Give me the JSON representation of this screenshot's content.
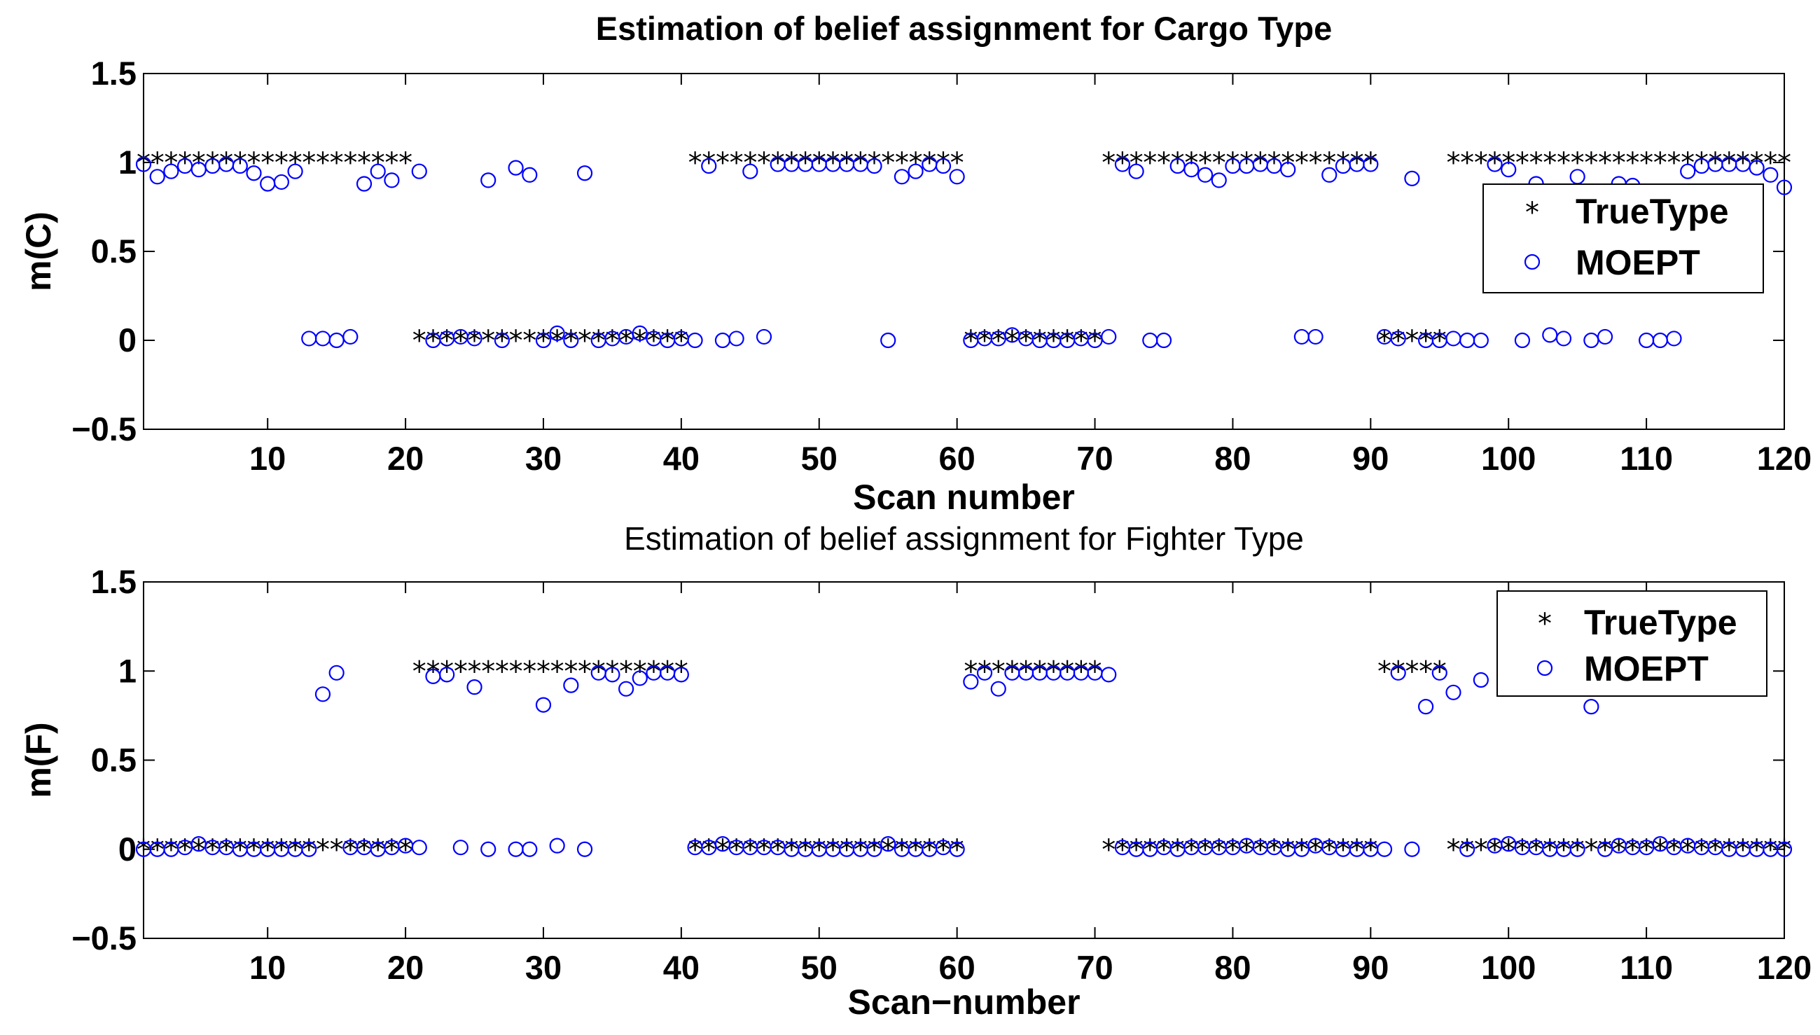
{
  "chart_data": [
    {
      "type": "scatter",
      "title": "Estimation of belief assignment for Cargo Type",
      "xlabel": "Scan number",
      "ylabel": "m(C)",
      "xlim": [
        1,
        120
      ],
      "ylim": [
        -0.5,
        1.5
      ],
      "xticks": [
        "10",
        "20",
        "30",
        "40",
        "50",
        "60",
        "70",
        "80",
        "90",
        "100",
        "110",
        "120"
      ],
      "yticks": [
        "1.5",
        "1",
        "0.5",
        "0",
        "−0.5"
      ],
      "legend_position": "right",
      "series": [
        {
          "name": "TrueType",
          "marker": "asterisk",
          "color": "#000000",
          "x": [
            1,
            2,
            3,
            4,
            5,
            6,
            7,
            8,
            9,
            10,
            11,
            12,
            13,
            14,
            15,
            16,
            17,
            18,
            19,
            20,
            21,
            22,
            23,
            24,
            25,
            26,
            27,
            28,
            29,
            30,
            31,
            32,
            33,
            34,
            35,
            36,
            37,
            38,
            39,
            40,
            41,
            42,
            43,
            44,
            45,
            46,
            47,
            48,
            49,
            50,
            51,
            52,
            53,
            54,
            55,
            56,
            57,
            58,
            59,
            60,
            61,
            62,
            63,
            64,
            65,
            66,
            67,
            68,
            69,
            70,
            71,
            72,
            73,
            74,
            75,
            76,
            77,
            78,
            79,
            80,
            81,
            82,
            83,
            84,
            85,
            86,
            87,
            88,
            89,
            90,
            91,
            92,
            93,
            94,
            95,
            96,
            97,
            98,
            99,
            100,
            101,
            102,
            103,
            104,
            105,
            106,
            107,
            108,
            109,
            110,
            111,
            112,
            113,
            114,
            115,
            116,
            117,
            118,
            119,
            120
          ],
          "y": [
            1,
            1,
            1,
            1,
            1,
            1,
            1,
            1,
            1,
            1,
            1,
            1,
            1,
            1,
            1,
            1,
            1,
            1,
            1,
            1,
            0,
            0,
            0,
            0,
            0,
            0,
            0,
            0,
            0,
            0,
            0,
            0,
            0,
            0,
            0,
            0,
            0,
            0,
            0,
            0,
            1,
            1,
            1,
            1,
            1,
            1,
            1,
            1,
            1,
            1,
            1,
            1,
            1,
            1,
            1,
            1,
            1,
            1,
            1,
            1,
            0,
            0,
            0,
            0,
            0,
            0,
            0,
            0,
            0,
            0,
            1,
            1,
            1,
            1,
            1,
            1,
            1,
            1,
            1,
            1,
            1,
            1,
            1,
            1,
            1,
            1,
            1,
            1,
            1,
            1,
            0,
            0,
            0,
            0,
            0,
            1,
            1,
            1,
            1,
            1,
            1,
            1,
            1,
            1,
            1,
            1,
            1,
            1,
            1,
            1,
            1,
            1,
            1,
            1,
            1,
            1,
            1,
            1,
            1,
            1
          ]
        },
        {
          "name": "MOEPT",
          "marker": "circle",
          "color": "#0000ff",
          "x": [
            1,
            2,
            3,
            4,
            5,
            6,
            7,
            8,
            9,
            10,
            11,
            12,
            13,
            14,
            15,
            16,
            17,
            18,
            19,
            21,
            22,
            23,
            24,
            25,
            26,
            27,
            28,
            29,
            30,
            31,
            32,
            33,
            34,
            35,
            36,
            37,
            38,
            39,
            40,
            41,
            42,
            43,
            44,
            45,
            46,
            47,
            48,
            49,
            50,
            51,
            52,
            53,
            54,
            55,
            56,
            57,
            58,
            59,
            60,
            61,
            62,
            63,
            64,
            65,
            66,
            67,
            68,
            69,
            70,
            71,
            72,
            73,
            74,
            75,
            76,
            77,
            78,
            79,
            80,
            81,
            82,
            83,
            84,
            85,
            86,
            87,
            88,
            89,
            90,
            91,
            92,
            93,
            94,
            95,
            96,
            97,
            98,
            99,
            100,
            101,
            102,
            103,
            104,
            105,
            106,
            107,
            108,
            109,
            110,
            111,
            112,
            113,
            114,
            115,
            116,
            117,
            118,
            119,
            120
          ],
          "y": [
            0.99,
            0.92,
            0.95,
            0.98,
            0.96,
            0.98,
            0.99,
            0.98,
            0.94,
            0.88,
            0.89,
            0.95,
            0.01,
            0.01,
            0.0,
            0.02,
            0.88,
            0.95,
            0.9,
            0.95,
            0.0,
            0.01,
            0.02,
            0.01,
            0.9,
            0.0,
            0.97,
            0.93,
            0.0,
            0.04,
            0.0,
            0.94,
            0.0,
            0.01,
            0.02,
            0.04,
            0.01,
            0.0,
            0.01,
            0.0,
            0.98,
            0.0,
            0.01,
            0.95,
            0.02,
            0.99,
            0.99,
            0.99,
            0.99,
            0.99,
            0.99,
            0.99,
            0.98,
            0.0,
            0.92,
            0.95,
            0.99,
            0.98,
            0.92,
            0.0,
            0.01,
            0.01,
            0.03,
            0.01,
            0.0,
            0.0,
            0.0,
            0.01,
            0.0,
            0.02,
            0.99,
            0.95,
            0.0,
            0.0,
            0.98,
            0.96,
            0.93,
            0.9,
            0.98,
            0.98,
            0.99,
            0.98,
            0.96,
            0.02,
            0.02,
            0.93,
            0.98,
            0.99,
            0.99,
            0.02,
            0.01,
            0.91,
            0.0,
            0.0,
            0.01,
            0.0,
            0.0,
            0.99,
            0.96,
            0.0,
            0.88,
            0.03,
            0.01,
            0.92,
            0.0,
            0.02,
            0.88,
            0.87,
            0.0,
            0.0,
            0.01,
            0.95,
            0.98,
            0.99,
            0.99,
            0.99,
            0.97,
            0.93,
            0.86
          ]
        }
      ]
    },
    {
      "type": "scatter",
      "title": "Estimation of belief assignment for Fighter Type",
      "xlabel": "Scan−number",
      "ylabel": "m(F)",
      "xlim": [
        1,
        120
      ],
      "ylim": [
        -0.5,
        1.5
      ],
      "xticks": [
        "10",
        "20",
        "30",
        "40",
        "50",
        "60",
        "70",
        "80",
        "90",
        "100",
        "110",
        "120"
      ],
      "yticks": [
        "1.5",
        "1",
        "0.5",
        "0",
        "−0.5"
      ],
      "legend_position": "top-right",
      "series": [
        {
          "name": "TrueType",
          "marker": "asterisk",
          "color": "#000000",
          "x": [
            1,
            2,
            3,
            4,
            5,
            6,
            7,
            8,
            9,
            10,
            11,
            12,
            13,
            14,
            15,
            16,
            17,
            18,
            19,
            20,
            21,
            22,
            23,
            24,
            25,
            26,
            27,
            28,
            29,
            30,
            31,
            32,
            33,
            34,
            35,
            36,
            37,
            38,
            39,
            40,
            41,
            42,
            43,
            44,
            45,
            46,
            47,
            48,
            49,
            50,
            51,
            52,
            53,
            54,
            55,
            56,
            57,
            58,
            59,
            60,
            61,
            62,
            63,
            64,
            65,
            66,
            67,
            68,
            69,
            70,
            71,
            72,
            73,
            74,
            75,
            76,
            77,
            78,
            79,
            80,
            81,
            82,
            83,
            84,
            85,
            86,
            87,
            88,
            89,
            90,
            91,
            92,
            93,
            94,
            95,
            96,
            97,
            98,
            99,
            100,
            101,
            102,
            103,
            104,
            105,
            106,
            107,
            108,
            109,
            110,
            111,
            112,
            113,
            114,
            115,
            116,
            117,
            118,
            119,
            120
          ],
          "y": [
            0,
            0,
            0,
            0,
            0,
            0,
            0,
            0,
            0,
            0,
            0,
            0,
            0,
            0,
            0,
            0,
            0,
            0,
            0,
            0,
            1,
            1,
            1,
            1,
            1,
            1,
            1,
            1,
            1,
            1,
            1,
            1,
            1,
            1,
            1,
            1,
            1,
            1,
            1,
            1,
            0,
            0,
            0,
            0,
            0,
            0,
            0,
            0,
            0,
            0,
            0,
            0,
            0,
            0,
            0,
            0,
            0,
            0,
            0,
            0,
            1,
            1,
            1,
            1,
            1,
            1,
            1,
            1,
            1,
            1,
            0,
            0,
            0,
            0,
            0,
            0,
            0,
            0,
            0,
            0,
            0,
            0,
            0,
            0,
            0,
            0,
            0,
            0,
            0,
            0,
            1,
            1,
            1,
            1,
            1,
            0,
            0,
            0,
            0,
            0,
            0,
            0,
            0,
            0,
            0,
            0,
            0,
            0,
            0,
            0,
            0,
            0,
            0,
            0,
            0,
            0,
            0,
            0,
            0,
            0
          ]
        },
        {
          "name": "MOEPT",
          "marker": "circle",
          "color": "#0000ff",
          "x": [
            1,
            2,
            3,
            4,
            5,
            6,
            7,
            8,
            9,
            10,
            11,
            12,
            13,
            14,
            15,
            16,
            17,
            18,
            19,
            20,
            21,
            22,
            23,
            24,
            25,
            26,
            28,
            29,
            30,
            31,
            32,
            33,
            34,
            35,
            36,
            37,
            38,
            39,
            40,
            41,
            42,
            43,
            44,
            45,
            46,
            47,
            48,
            49,
            50,
            51,
            52,
            53,
            54,
            55,
            56,
            57,
            58,
            59,
            60,
            61,
            62,
            63,
            64,
            65,
            66,
            67,
            68,
            69,
            70,
            71,
            72,
            73,
            74,
            75,
            76,
            77,
            78,
            79,
            80,
            81,
            82,
            83,
            84,
            85,
            86,
            87,
            88,
            89,
            90,
            91,
            92,
            93,
            94,
            95,
            96,
            97,
            98,
            99,
            100,
            101,
            102,
            103,
            104,
            105,
            106,
            107,
            108,
            109,
            110,
            111,
            112,
            113,
            114,
            115,
            116,
            117,
            118,
            119,
            120
          ],
          "y": [
            0.0,
            0.0,
            0.0,
            0.01,
            0.03,
            0.01,
            0.01,
            0.0,
            0.0,
            0.0,
            0.0,
            0.0,
            0.0,
            0.87,
            0.99,
            0.01,
            0.01,
            0.0,
            0.01,
            0.02,
            0.01,
            0.97,
            0.98,
            0.01,
            0.91,
            0.0,
            0.0,
            0.0,
            0.81,
            0.02,
            0.92,
            0.0,
            0.99,
            0.98,
            0.9,
            0.96,
            0.99,
            0.99,
            0.98,
            0.01,
            0.01,
            0.03,
            0.01,
            0.01,
            0.01,
            0.01,
            0.0,
            0.0,
            0.0,
            0.0,
            0.0,
            0.0,
            0.0,
            0.03,
            0.0,
            0.0,
            0.0,
            0.01,
            0.0,
            0.94,
            0.99,
            0.9,
            0.99,
            0.99,
            0.99,
            0.99,
            0.99,
            0.99,
            0.99,
            0.98,
            0.01,
            0.0,
            0.0,
            0.01,
            0.0,
            0.01,
            0.01,
            0.01,
            0.01,
            0.02,
            0.01,
            0.01,
            0.0,
            0.0,
            0.02,
            0.01,
            0.0,
            0.0,
            0.0,
            0.0,
            0.99,
            0.0,
            0.8,
            0.99,
            0.88,
            0.0,
            0.95,
            0.02,
            0.03,
            0.01,
            0.01,
            0.0,
            0.0,
            0.0,
            0.8,
            0.0,
            0.02,
            0.01,
            0.01,
            0.03,
            0.01,
            0.02,
            0.01,
            0.01,
            0.0,
            0.0,
            0.0,
            0.0,
            0.0
          ]
        }
      ]
    }
  ]
}
